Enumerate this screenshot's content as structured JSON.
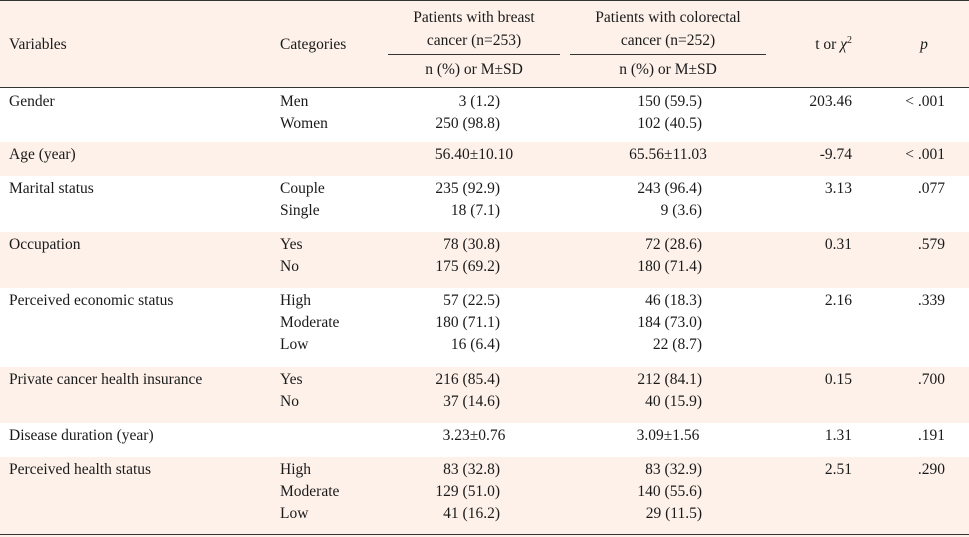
{
  "header": {
    "variables": "Variables",
    "categories": "Categories",
    "group1_line1": "Patients with breast",
    "group1_line2": "cancer (n=253)",
    "group2_line1": "Patients with colorectal",
    "group2_line2": "cancer (n=252)",
    "sub1": "n (%) or M±SD",
    "sub2": "n (%) or M±SD",
    "t_label": "t or ",
    "chi": "χ",
    "chi_sup": "2",
    "p": "p"
  },
  "rows": [
    {
      "variable": "Gender",
      "categories": [
        "Men",
        "Women"
      ],
      "g1": [
        "3 (1.2)",
        "250 (98.8)"
      ],
      "g2": [
        "150 (59.5)",
        "102 (40.5)"
      ],
      "t": "203.46",
      "p": "< .001"
    },
    {
      "variable": "Age (year)",
      "categories": [
        ""
      ],
      "g1": [
        "56.40±10.10"
      ],
      "g2": [
        "65.56±11.03"
      ],
      "t": "-9.74",
      "p": "< .001"
    },
    {
      "variable": "Marital status",
      "categories": [
        "Couple",
        "Single"
      ],
      "g1": [
        "235 (92.9)",
        "18 (7.1)"
      ],
      "g2": [
        "243 (96.4)",
        "9 (3.6)"
      ],
      "t": "3.13",
      "p": ".077"
    },
    {
      "variable": "Occupation",
      "categories": [
        "Yes",
        "No"
      ],
      "g1": [
        "78 (30.8)",
        "175 (69.2)"
      ],
      "g2": [
        "72 (28.6)",
        "180 (71.4)"
      ],
      "t": "0.31",
      "p": ".579"
    },
    {
      "variable": "Perceived economic status",
      "categories": [
        "High",
        "Moderate",
        "Low"
      ],
      "g1": [
        "57 (22.5)",
        "180 (71.1)",
        "16 (6.4)"
      ],
      "g2": [
        "46 (18.3)",
        "184 (73.0)",
        "22 (8.7)"
      ],
      "t": "2.16",
      "p": ".339"
    },
    {
      "variable": "Private cancer health insurance",
      "categories": [
        "Yes",
        "No"
      ],
      "g1": [
        "216 (85.4)",
        "37 (14.6)"
      ],
      "g2": [
        "212 (84.1)",
        "40 (15.9)"
      ],
      "t": "0.15",
      "p": ".700"
    },
    {
      "variable": "Disease duration (year)",
      "categories": [
        ""
      ],
      "g1": [
        "3.23±0.76"
      ],
      "g2": [
        "3.09±1.56"
      ],
      "t": "1.31",
      "p": ".191"
    },
    {
      "variable": "Perceived health status",
      "categories": [
        "High",
        "Moderate",
        "Low"
      ],
      "g1": [
        "83 (32.8)",
        "129 (51.0)",
        "41 (16.2)"
      ],
      "g2": [
        "83 (32.9)",
        "140 (55.6)",
        "29 (11.5)"
      ],
      "t": "2.51",
      "p": ".290"
    }
  ]
}
